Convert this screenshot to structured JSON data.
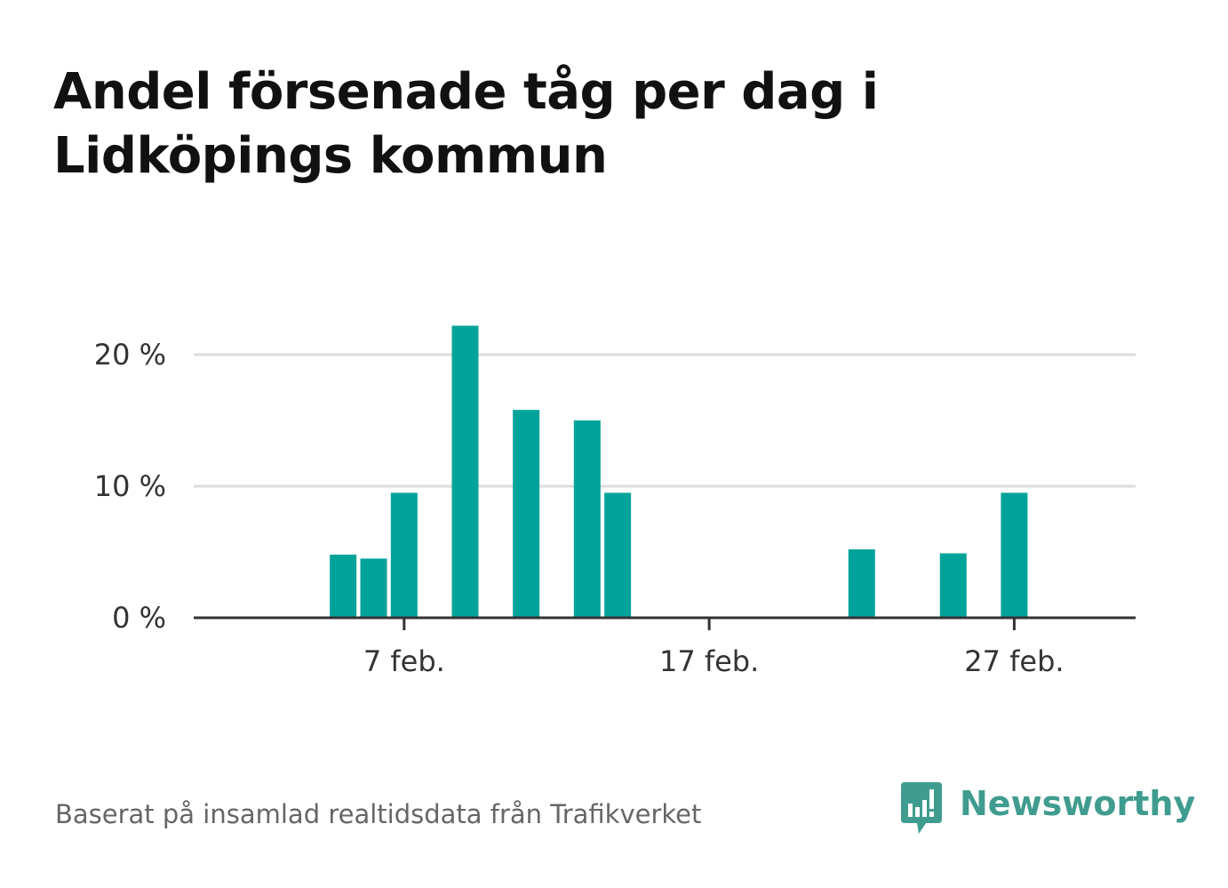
{
  "title_lines": [
    "Andel försenade tåg per dag i",
    "Lidköpings kommun"
  ],
  "source": "Baserat på insamlad realtidsdata från Trafikverket",
  "brand": {
    "name": "Newsworthy",
    "color": "#3f9c8f"
  },
  "colors": {
    "bar": "#00a39a",
    "grid": "#dddddd",
    "axis": "#333333"
  },
  "chart_data": {
    "type": "bar",
    "title": "Andel försenade tåg per dag i Lidköpings kommun",
    "xlabel": "",
    "ylabel": "",
    "x": [
      "2024-02-01",
      "2024-02-02",
      "2024-02-03",
      "2024-02-04",
      "2024-02-05",
      "2024-02-06",
      "2024-02-07",
      "2024-02-08",
      "2024-02-09",
      "2024-02-10",
      "2024-02-11",
      "2024-02-12",
      "2024-02-13",
      "2024-02-14",
      "2024-02-15",
      "2024-02-16",
      "2024-02-17",
      "2024-02-18",
      "2024-02-19",
      "2024-02-20",
      "2024-02-21",
      "2024-02-22",
      "2024-02-23",
      "2024-02-24",
      "2024-02-25",
      "2024-02-26",
      "2024-02-27",
      "2024-02-28",
      "2024-02-29"
    ],
    "values": [
      0,
      0,
      0,
      0,
      4.8,
      4.5,
      9.5,
      0,
      22.2,
      0,
      15.8,
      0,
      15.0,
      9.5,
      0,
      0,
      0,
      0,
      0,
      0,
      0,
      5.2,
      0,
      0,
      4.9,
      0,
      9.5,
      0,
      0
    ],
    "x_ticks": [
      {
        "date": "2024-02-07",
        "label": "7 feb."
      },
      {
        "date": "2024-02-17",
        "label": "17 feb."
      },
      {
        "date": "2024-02-27",
        "label": "27 feb."
      }
    ],
    "y_ticks": [
      {
        "value": 0,
        "label": "0 %"
      },
      {
        "value": 10,
        "label": "10 %"
      },
      {
        "value": 20,
        "label": "20 %"
      }
    ],
    "ylim": [
      0,
      23
    ],
    "grid": true,
    "legend": "none"
  }
}
